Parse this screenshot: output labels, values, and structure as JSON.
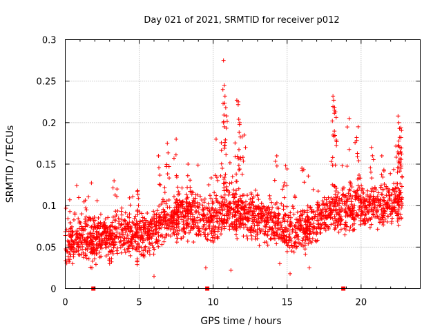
{
  "chart_data": {
    "type": "scatter",
    "title": "Day 021 of 2021, SRMTID for receiver p012",
    "xlabel": "GPS time / hours",
    "ylabel": "SRMTID / TECUs",
    "xlim": [
      0,
      24
    ],
    "ylim": [
      0,
      0.3
    ],
    "xticks": [
      0,
      5,
      10,
      15,
      20
    ],
    "yticks": [
      0,
      0.05,
      0.1,
      0.15,
      0.2,
      0.25,
      0.3
    ],
    "xtick_labels": [
      "0",
      "5",
      "10",
      "15",
      "20"
    ],
    "ytick_labels": [
      "0",
      "0.05",
      "0.1",
      "0.15",
      "0.2",
      "0.25",
      "0.3"
    ],
    "grid": true,
    "marker": "+",
    "color": "#ff0000",
    "baseline_markers_x": [
      1.9,
      9.6,
      18.8
    ],
    "trend": [
      {
        "x": 0.0,
        "y": 0.055
      },
      {
        "x": 1.0,
        "y": 0.058
      },
      {
        "x": 2.0,
        "y": 0.06
      },
      {
        "x": 3.0,
        "y": 0.063
      },
      {
        "x": 4.0,
        "y": 0.065
      },
      {
        "x": 5.0,
        "y": 0.06
      },
      {
        "x": 6.0,
        "y": 0.07
      },
      {
        "x": 7.0,
        "y": 0.085
      },
      {
        "x": 8.0,
        "y": 0.09
      },
      {
        "x": 9.0,
        "y": 0.085
      },
      {
        "x": 10.0,
        "y": 0.08
      },
      {
        "x": 11.0,
        "y": 0.095
      },
      {
        "x": 12.0,
        "y": 0.09
      },
      {
        "x": 13.0,
        "y": 0.085
      },
      {
        "x": 14.0,
        "y": 0.08
      },
      {
        "x": 15.0,
        "y": 0.065
      },
      {
        "x": 16.0,
        "y": 0.07
      },
      {
        "x": 17.0,
        "y": 0.08
      },
      {
        "x": 18.0,
        "y": 0.09
      },
      {
        "x": 19.0,
        "y": 0.095
      },
      {
        "x": 20.0,
        "y": 0.1
      },
      {
        "x": 21.0,
        "y": 0.1
      },
      {
        "x": 22.0,
        "y": 0.1
      },
      {
        "x": 22.8,
        "y": 0.105
      }
    ],
    "peaks": [
      {
        "x": 0.3,
        "y": 0.107
      },
      {
        "x": 3.3,
        "y": 0.13
      },
      {
        "x": 4.9,
        "y": 0.118
      },
      {
        "x": 6.3,
        "y": 0.16
      },
      {
        "x": 6.9,
        "y": 0.175
      },
      {
        "x": 7.5,
        "y": 0.18
      },
      {
        "x": 8.3,
        "y": 0.15
      },
      {
        "x": 10.2,
        "y": 0.18
      },
      {
        "x": 10.7,
        "y": 0.275
      },
      {
        "x": 10.75,
        "y": 0.245
      },
      {
        "x": 10.8,
        "y": 0.232
      },
      {
        "x": 10.85,
        "y": 0.218
      },
      {
        "x": 10.7,
        "y": 0.2
      },
      {
        "x": 11.6,
        "y": 0.227
      },
      {
        "x": 11.7,
        "y": 0.225
      },
      {
        "x": 11.8,
        "y": 0.2
      },
      {
        "x": 12.1,
        "y": 0.185
      },
      {
        "x": 14.3,
        "y": 0.16
      },
      {
        "x": 14.9,
        "y": 0.148
      },
      {
        "x": 16.0,
        "y": 0.145
      },
      {
        "x": 18.1,
        "y": 0.232
      },
      {
        "x": 18.15,
        "y": 0.227
      },
      {
        "x": 18.2,
        "y": 0.215
      },
      {
        "x": 18.1,
        "y": 0.185
      },
      {
        "x": 19.2,
        "y": 0.205
      },
      {
        "x": 19.8,
        "y": 0.195
      },
      {
        "x": 19.7,
        "y": 0.182
      },
      {
        "x": 20.7,
        "y": 0.17
      },
      {
        "x": 21.4,
        "y": 0.16
      },
      {
        "x": 22.5,
        "y": 0.208
      },
      {
        "x": 22.55,
        "y": 0.2
      },
      {
        "x": 22.6,
        "y": 0.193
      },
      {
        "x": 22.7,
        "y": 0.182
      },
      {
        "x": 22.65,
        "y": 0.165
      }
    ],
    "lows": [
      {
        "x": 1.8,
        "y": 0.025
      },
      {
        "x": 6.0,
        "y": 0.015
      },
      {
        "x": 9.5,
        "y": 0.025
      },
      {
        "x": 11.2,
        "y": 0.022
      },
      {
        "x": 15.2,
        "y": 0.018
      },
      {
        "x": 16.5,
        "y": 0.025
      },
      {
        "x": 0.5,
        "y": 0.03
      },
      {
        "x": 3.0,
        "y": 0.03
      },
      {
        "x": 14.5,
        "y": 0.03
      }
    ]
  }
}
